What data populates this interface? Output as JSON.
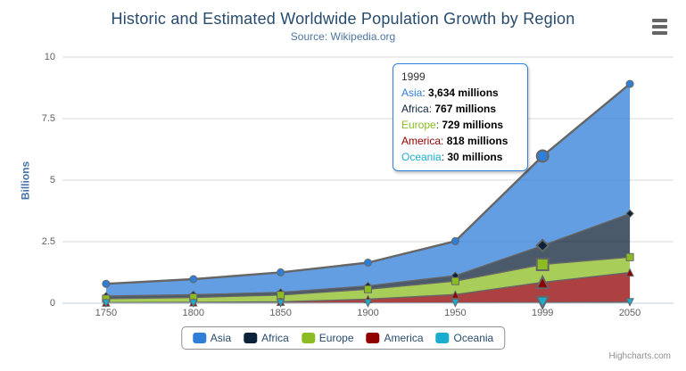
{
  "header": {
    "title": "Historic and Estimated Worldwide Population Growth by Region",
    "subtitle": "Source: Wikipedia.org"
  },
  "credits": {
    "label": "Highcharts.com"
  },
  "colors": {
    "title": "#274b6d",
    "subtitle": "#4d759e",
    "axis_label": "#606060",
    "y_axis_title": "#4572A7",
    "grid": "#D8D8D8",
    "axis_line": "#C0D0E0",
    "series_outline": "#666666",
    "legend_text": "#274b6d",
    "legend_border": "#909090",
    "tooltip_border": "#2f7ed8"
  },
  "chart_data": {
    "type": "area",
    "stacking": "normal",
    "title": "Historic and Estimated Worldwide Population Growth by Region",
    "subtitle": "Source: Wikipedia.org",
    "xlabel": "",
    "ylabel": "Billions",
    "categories": [
      "1750",
      "1800",
      "1850",
      "1900",
      "1950",
      "1999",
      "2050"
    ],
    "value_unit": "millions",
    "ylim": [
      0,
      10
    ],
    "yticks": [
      0,
      2.5,
      5,
      7.5,
      10
    ],
    "ytick_labels": [
      "0",
      "2.5",
      "5",
      "7.5",
      "10"
    ],
    "grid": "horizontal",
    "legend_position": "bottom-center",
    "fill_opacity": 0.75,
    "hover_category_index": 5,
    "series": [
      {
        "name": "Asia",
        "color": "#2f7ed8",
        "marker": "circle",
        "values": [
          502,
          635,
          809,
          947,
          1402,
          3634,
          5268
        ]
      },
      {
        "name": "Africa",
        "color": "#0d233a",
        "marker": "diamond",
        "values": [
          106,
          107,
          111,
          133,
          221,
          767,
          1766
        ]
      },
      {
        "name": "Europe",
        "color": "#8bbc21",
        "marker": "square",
        "values": [
          163,
          203,
          276,
          408,
          547,
          729,
          628
        ]
      },
      {
        "name": "America",
        "color": "#910000",
        "marker": "triangle",
        "values": [
          18,
          31,
          54,
          156,
          339,
          818,
          1201
        ]
      },
      {
        "name": "Oceania",
        "color": "#1aadce",
        "marker": "triangle-down",
        "values": [
          2,
          2,
          2,
          6,
          13,
          30,
          46
        ]
      }
    ]
  },
  "tooltip": {
    "header": "1999",
    "rows": [
      {
        "name": "Asia",
        "color": "#2f7ed8",
        "value": "3,634 millions"
      },
      {
        "name": "Africa",
        "color": "#0d233a",
        "value": "767 millions"
      },
      {
        "name": "Europe",
        "color": "#8bbc21",
        "value": "729 millions"
      },
      {
        "name": "America",
        "color": "#910000",
        "value": "818 millions"
      },
      {
        "name": "Oceania",
        "color": "#1aadce",
        "value": "30 millions"
      }
    ]
  }
}
